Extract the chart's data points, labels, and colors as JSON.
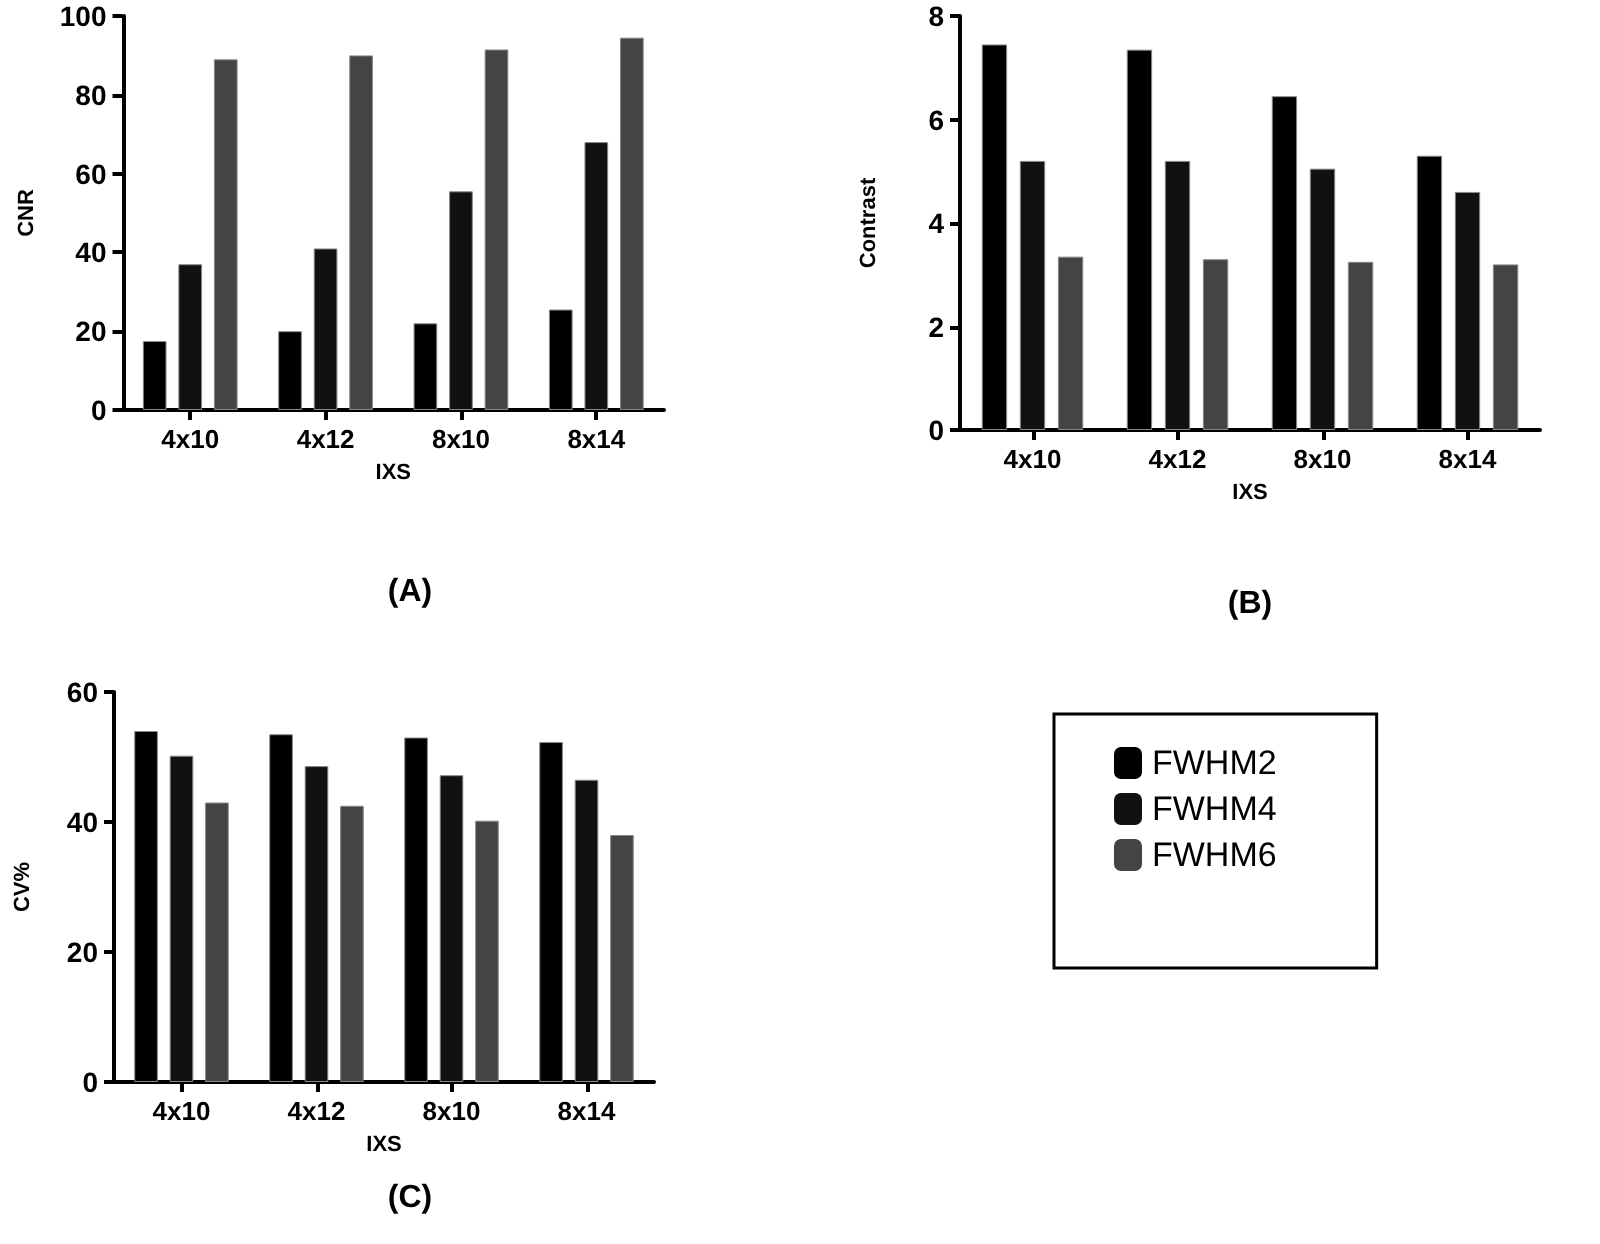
{
  "chart_data": [
    {
      "type": "bar",
      "title": "(A)",
      "xlabel": "IXS",
      "ylabel": "CNR",
      "categories": [
        "4x10",
        "4x12",
        "8x10",
        "8x14"
      ],
      "ylim": [
        0,
        100
      ],
      "yticks": [
        0,
        20,
        40,
        60,
        80,
        100
      ],
      "grid": false,
      "legend": false,
      "series": [
        {
          "color": "#000000",
          "values": [
            17.5,
            20,
            22,
            25.5
          ]
        },
        {
          "color": "#111111",
          "values": [
            37,
            41,
            55.5,
            68
          ]
        },
        {
          "color": "#444444",
          "values": [
            89,
            90,
            91.5,
            94.5
          ]
        }
      ]
    },
    {
      "type": "bar",
      "title": "(B)",
      "xlabel": "IXS",
      "ylabel": "Contrast",
      "categories": [
        "4x10",
        "4x12",
        "8x10",
        "8x14"
      ],
      "ylim": [
        0,
        8
      ],
      "yticks": [
        0,
        2,
        4,
        6,
        8
      ],
      "grid": false,
      "legend": false,
      "series": [
        {
          "color": "#000000",
          "values": [
            7.45,
            7.35,
            6.45,
            5.3
          ]
        },
        {
          "color": "#111111",
          "values": [
            5.2,
            5.2,
            5.05,
            4.6
          ]
        },
        {
          "color": "#444444",
          "values": [
            3.35,
            3.3,
            3.25,
            3.2
          ]
        }
      ]
    },
    {
      "type": "bar",
      "title": "(C)",
      "xlabel": "IXS",
      "ylabel": "CV%",
      "categories": [
        "4x10",
        "4x12",
        "8x10",
        "8x14"
      ],
      "ylim": [
        0,
        60
      ],
      "yticks": [
        0,
        20,
        40,
        60
      ],
      "grid": false,
      "legend": "right",
      "series": [
        {
          "name": "FWHM2",
          "color": "#000000",
          "values": [
            54,
            53.5,
            53,
            52.3
          ]
        },
        {
          "name": "FWHM4",
          "color": "#111111",
          "values": [
            50.2,
            48.6,
            47.2,
            46.5
          ]
        },
        {
          "name": "FWHM6",
          "color": "#444444",
          "values": [
            43,
            42.5,
            40.2,
            38
          ]
        }
      ]
    }
  ]
}
